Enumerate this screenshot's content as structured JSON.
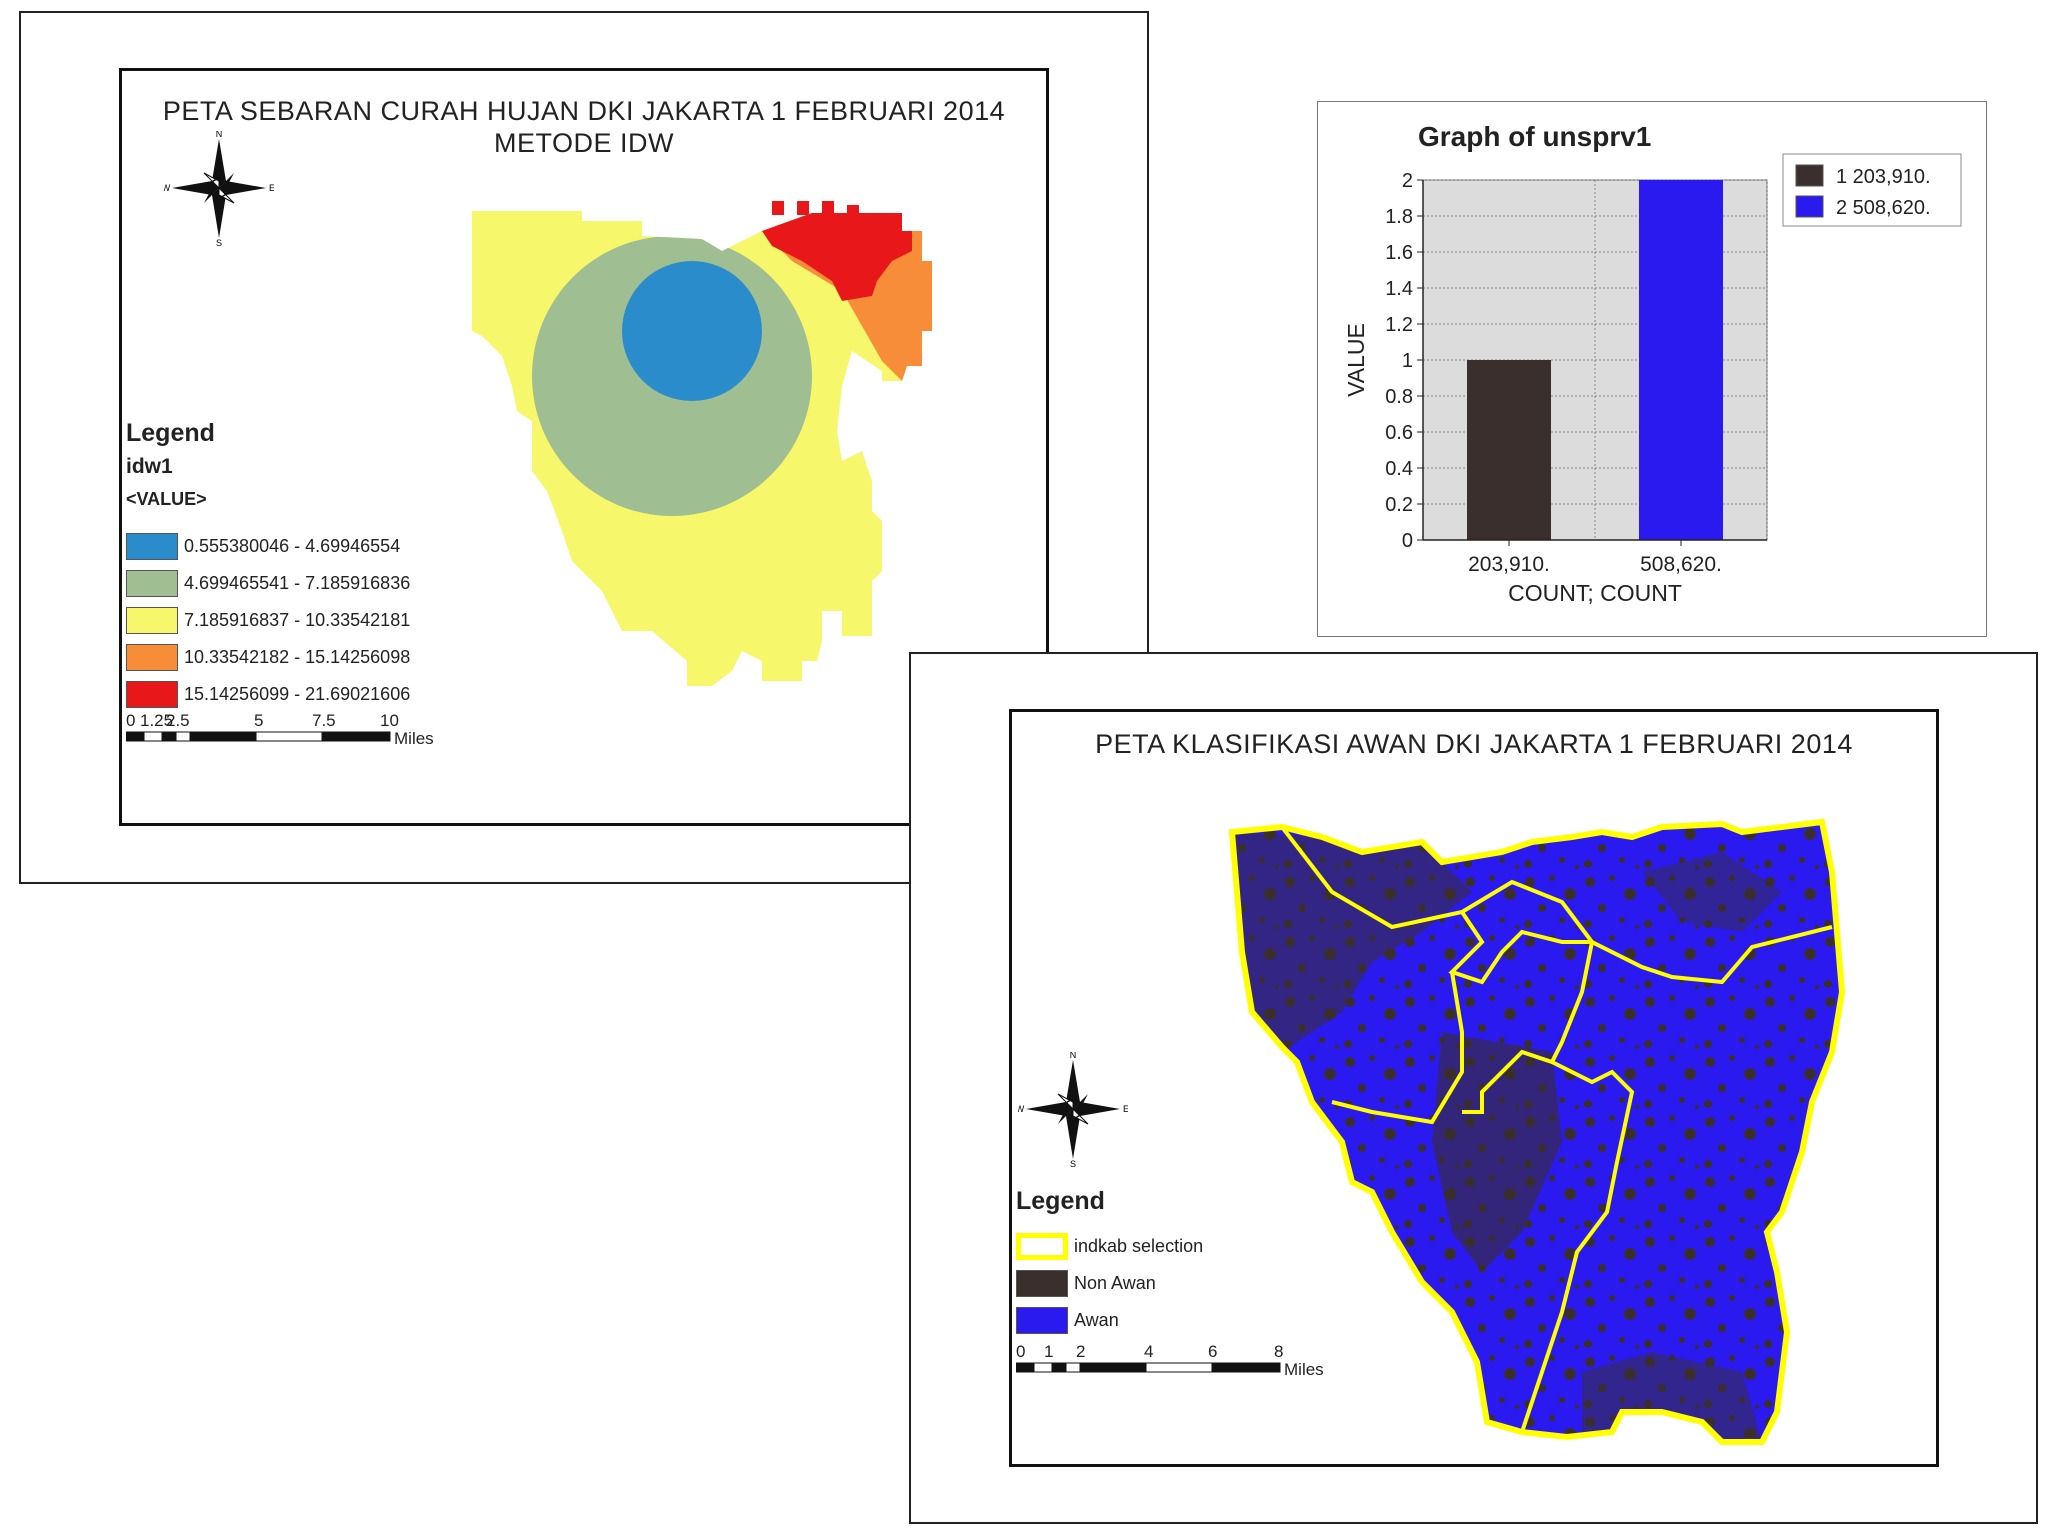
{
  "map1": {
    "title_line1": "PETA SEBARAN CURAH HUJAN DKI JAKARTA 1 FEBRUARI 2014",
    "title_line2": "METODE IDW",
    "legend": {
      "heading": "Legend",
      "layer": "idw1",
      "field": "<VALUE>",
      "classes": [
        {
          "label": "0.555380046 - 4.69946554",
          "color": "#2b8ccc"
        },
        {
          "label": "4.699465541 - 7.185916836",
          "color": "#9fbe92"
        },
        {
          "label": "7.185916837 - 10.33542181",
          "color": "#f7f76c"
        },
        {
          "label": "10.33542182 - 15.14256098",
          "color": "#f78d38"
        },
        {
          "label": "15.14256099 - 21.69021606",
          "color": "#e8171a"
        }
      ]
    },
    "scale": {
      "ticks": [
        "0",
        "1.25",
        "2.5",
        "5",
        "7.5",
        "10"
      ],
      "unit": "Miles"
    },
    "compass": {
      "n": "N",
      "s": "S",
      "e": "E",
      "w": "W"
    }
  },
  "chart": {
    "chart_data": {
      "type": "bar",
      "title": "Graph of unsprv1",
      "xlabel": "COUNT; COUNT",
      "ylabel": "VALUE",
      "ylim": [
        0,
        2
      ],
      "yticks": [
        "0",
        "0.2",
        "0.4",
        "0.6",
        "0.8",
        "1",
        "1.2",
        "1.4",
        "1.6",
        "1.8",
        "2"
      ],
      "categories": [
        "203,910.",
        "508,620."
      ],
      "values": [
        1,
        2
      ],
      "colors": [
        "#3a2f2c",
        "#2a1af0"
      ],
      "grid": true,
      "legend_placement": "right",
      "legend": [
        {
          "label": "1 203,910.",
          "color": "#3a2f2c"
        },
        {
          "label": "2 508,620.",
          "color": "#2a1af0"
        }
      ]
    }
  },
  "map2": {
    "title": "PETA KLASIFIKASI AWAN DKI JAKARTA 1 FEBRUARI 2014",
    "legend": {
      "heading": "Legend",
      "items": [
        {
          "label": "indkab selection",
          "color": "#ffff00",
          "outline": true
        },
        {
          "label": "Non Awan",
          "color": "#3a2f2c"
        },
        {
          "label": "Awan",
          "color": "#2a1af0"
        }
      ]
    },
    "scale": {
      "ticks": [
        "0",
        "1",
        "2",
        "4",
        "6",
        "8"
      ],
      "unit": "Miles"
    },
    "compass": {
      "n": "N",
      "s": "S",
      "e": "E",
      "w": "W"
    }
  }
}
